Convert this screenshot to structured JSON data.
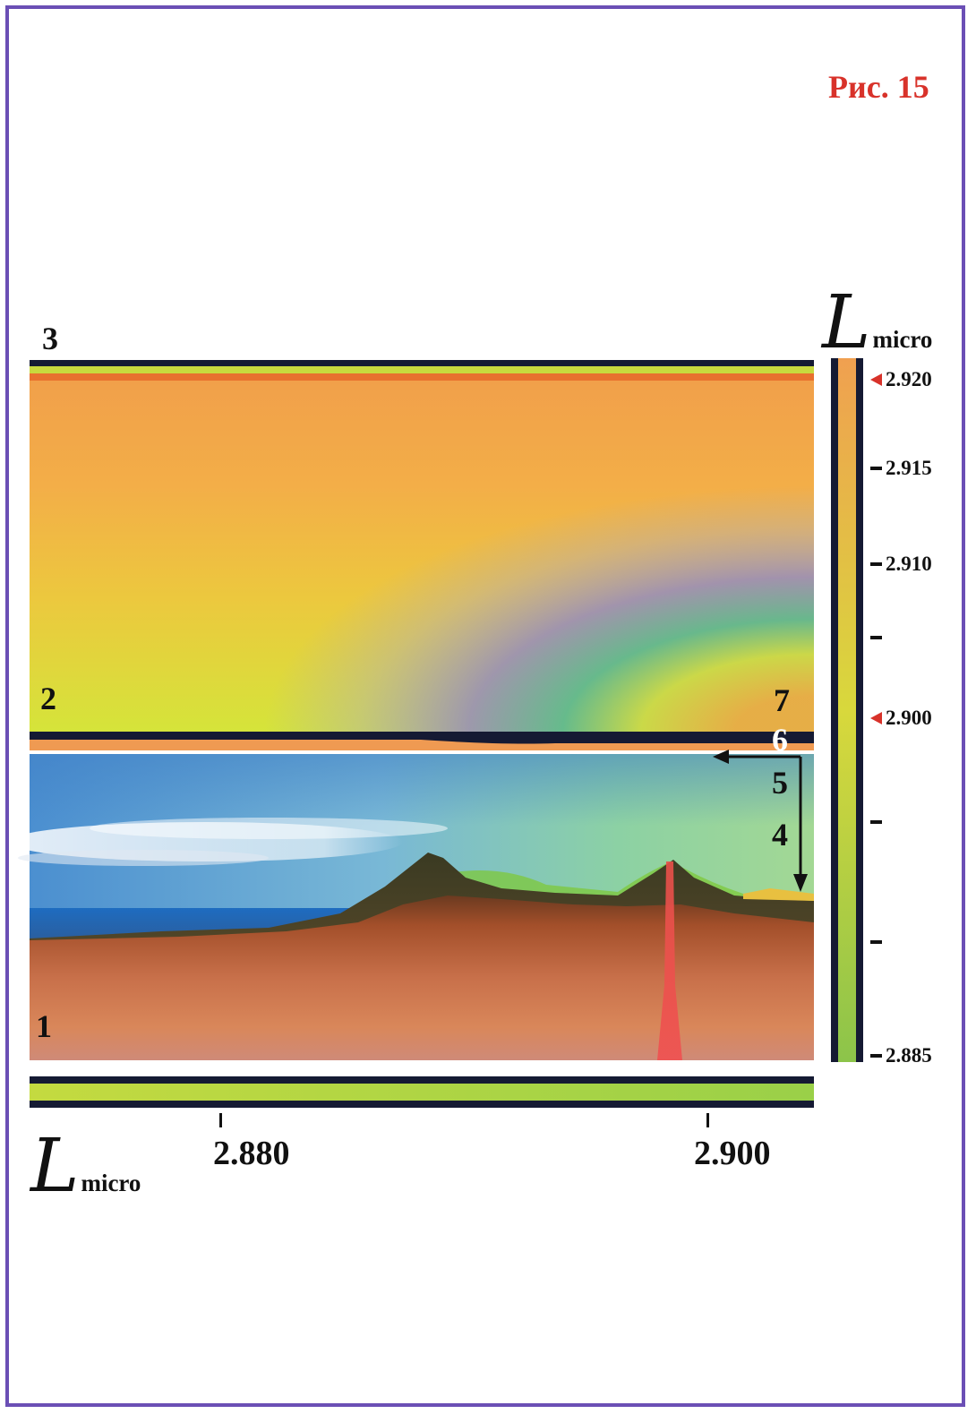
{
  "title": "Рис. 15",
  "region_labels": {
    "l1": "1",
    "l2": "2",
    "l3": "3",
    "l4": "4",
    "l5": "5",
    "l6": "6",
    "l7": "7"
  },
  "x_axis": {
    "symbol": "L",
    "subscript": "micro",
    "ticks": [
      "2.880",
      "2.900"
    ]
  },
  "y_axis": {
    "symbol": "L",
    "subscript": "micro",
    "ticks": [
      {
        "value": "2.920",
        "marker": "triangle"
      },
      {
        "value": "2.915",
        "marker": "dash"
      },
      {
        "value": "2.910",
        "marker": "dash"
      },
      {
        "value": "",
        "marker": "dash"
      },
      {
        "value": "2.900",
        "marker": "triangle"
      },
      {
        "value": "",
        "marker": "dash"
      },
      {
        "value": "",
        "marker": "dash"
      },
      {
        "value": "2.885",
        "marker": "dash"
      }
    ]
  },
  "colors": {
    "frame": "#6b4fb5",
    "title": "#d8322a",
    "marker": "#d8322a",
    "band_dark": "#151a33",
    "band_green": "#b8d83a",
    "sky_orange": "#f0a84a",
    "sky_yellow": "#d8e43c",
    "ocean_blue": "#2a74c0",
    "ground_brown": "#b8653a"
  }
}
